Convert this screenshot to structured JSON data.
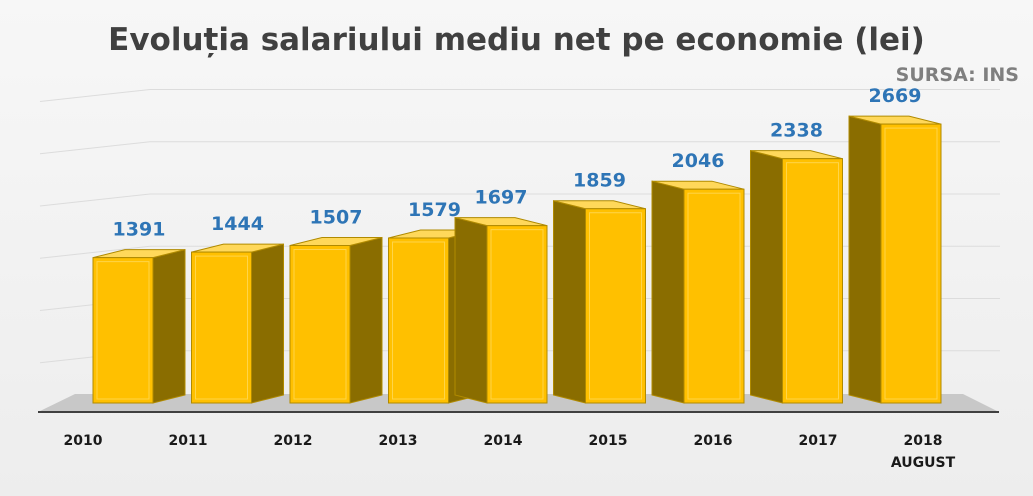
{
  "title": "Evoluția salariului mediu net pe economie (lei)",
  "source": "SURSA: INS",
  "colors": {
    "bar_front": "#ffc000",
    "bar_side": "#8a6d00",
    "bar_top": "#ffd85a",
    "label": "#2e75b6",
    "floor": "#c8c8c8"
  },
  "chart_data": {
    "type": "bar",
    "style": "3d-column",
    "categories": [
      "2010",
      "2011",
      "2012",
      "2013",
      "2014",
      "2015",
      "2016",
      "2017",
      "2018"
    ],
    "category_sublabels": [
      "",
      "",
      "",
      "",
      "",
      "",
      "",
      "",
      "AUGUST"
    ],
    "values": [
      1391,
      1444,
      1507,
      1579,
      1697,
      1859,
      2046,
      2338,
      2669
    ],
    "data_labels": [
      "1391",
      "1444",
      "1507",
      "1579",
      "1697",
      "1859",
      "2046",
      "2338",
      "2669"
    ],
    "title": "Evoluția salariului mediu net pe economie (lei)",
    "xlabel": "",
    "ylabel": "",
    "ylim": [
      0,
      3000
    ],
    "grid": true,
    "legend": "none"
  }
}
